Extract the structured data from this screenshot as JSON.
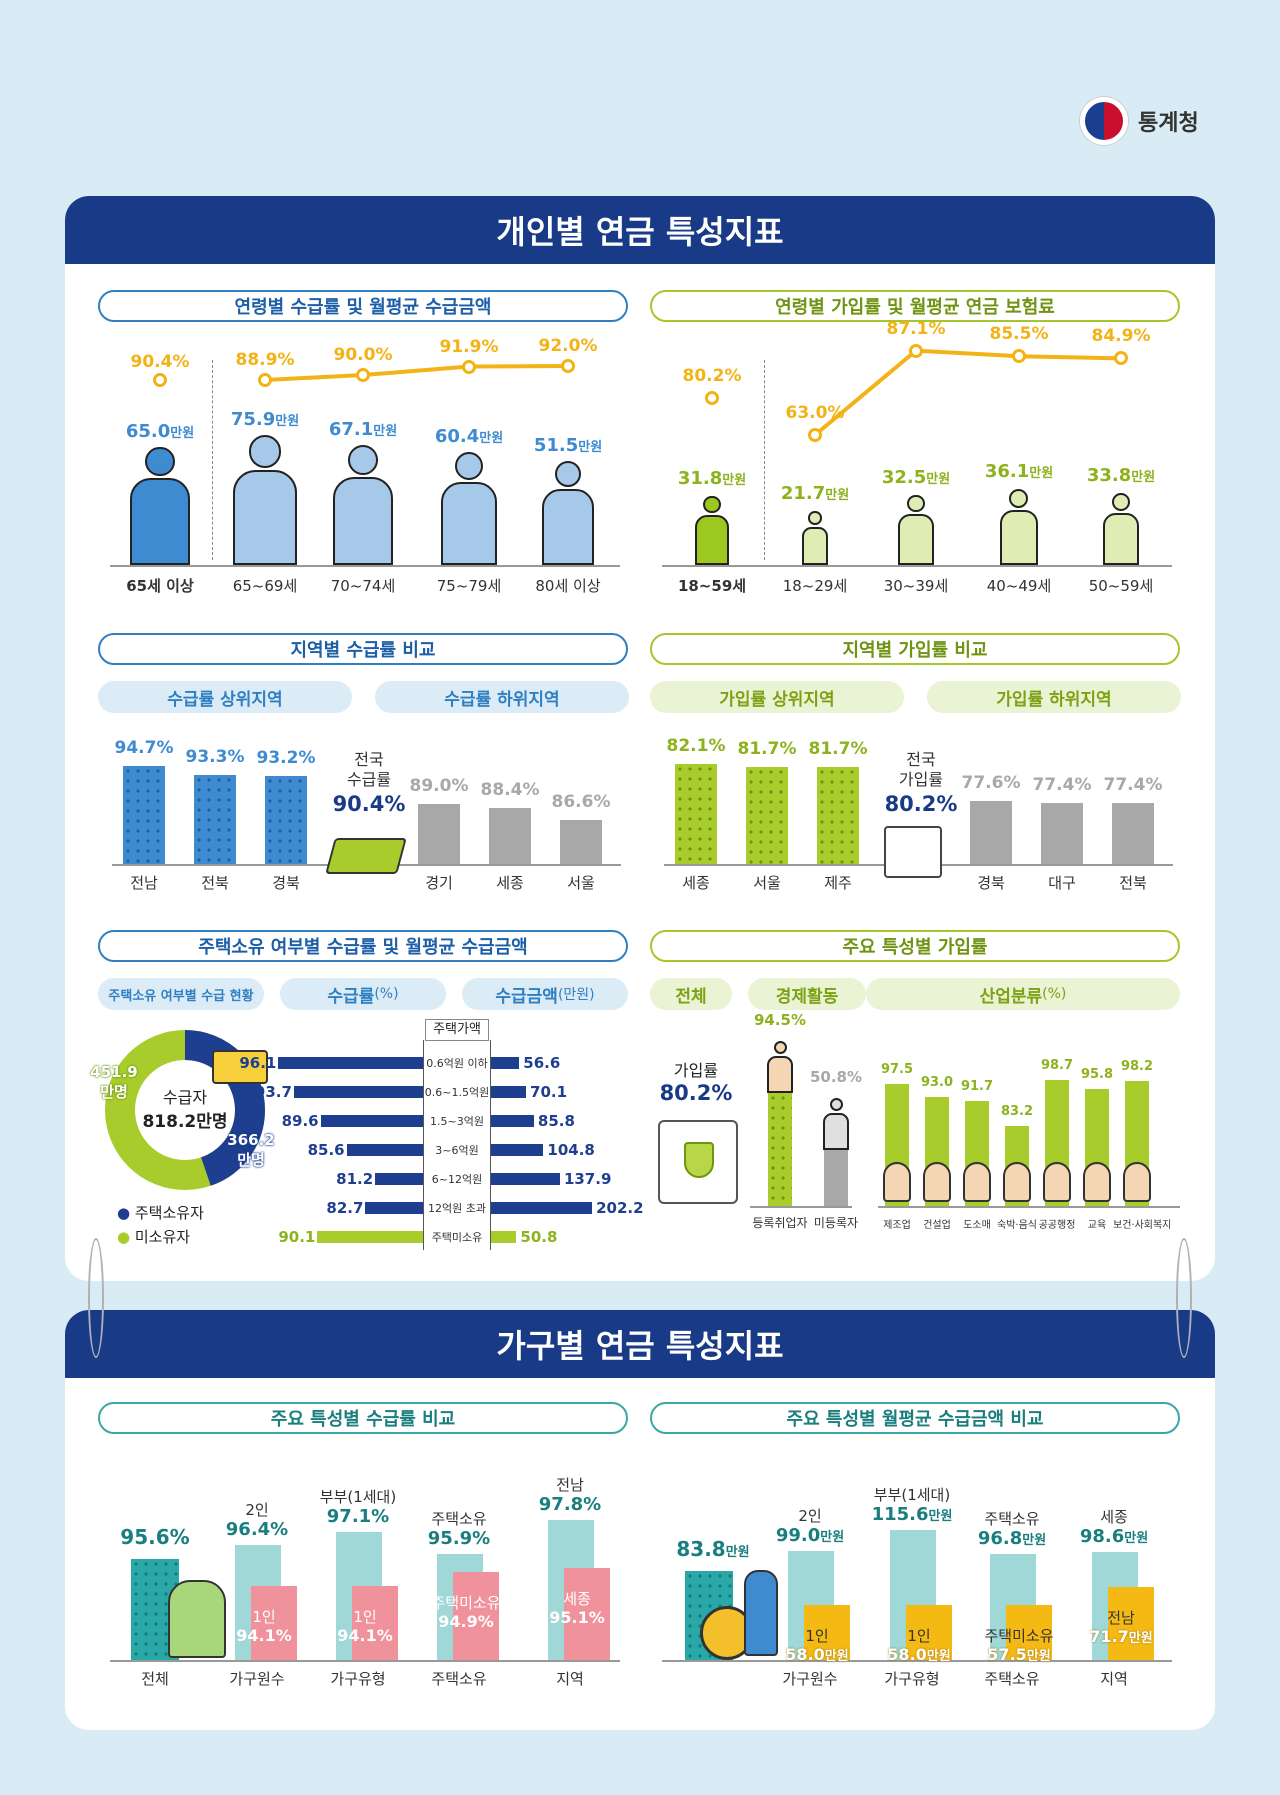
{
  "org": "통계청",
  "panel1": {
    "title": "개인별 연금 특성지표"
  },
  "panel2": {
    "title": "가구별 연금 특성지표"
  },
  "s1": {
    "title": "연령별 수급률 및 월평균 수급금액",
    "groups": [
      {
        "label": "65세 이상",
        "rate": "90.4%",
        "amount": "65.0",
        "unit": "만원"
      },
      {
        "label": "65~69세",
        "rate": "88.9%",
        "amount": "75.9",
        "unit": "만원"
      },
      {
        "label": "70~74세",
        "rate": "90.0%",
        "amount": "67.1",
        "unit": "만원"
      },
      {
        "label": "75~79세",
        "rate": "91.9%",
        "amount": "60.4",
        "unit": "만원"
      },
      {
        "label": "80세 이상",
        "rate": "92.0%",
        "amount": "51.5",
        "unit": "만원"
      }
    ]
  },
  "s2": {
    "title": "연령별 가입률 및 월평균 연금 보험료",
    "groups": [
      {
        "label": "18~59세",
        "rate": "80.2%",
        "amount": "31.8",
        "unit": "만원"
      },
      {
        "label": "18~29세",
        "rate": "63.0%",
        "amount": "21.7",
        "unit": "만원"
      },
      {
        "label": "30~39세",
        "rate": "87.1%",
        "amount": "32.5",
        "unit": "만원"
      },
      {
        "label": "40~49세",
        "rate": "85.5%",
        "amount": "36.1",
        "unit": "만원"
      },
      {
        "label": "50~59세",
        "rate": "84.9%",
        "amount": "33.8",
        "unit": "만원"
      }
    ]
  },
  "s3": {
    "title": "지역별 수급률 비교",
    "top_label": "수급률 상위지역",
    "bottom_label": "수급률 하위지역",
    "national_label_1": "전국",
    "national_label_2": "수급률",
    "national": "90.4%",
    "top": [
      {
        "region": "전남",
        "value": "94.7%"
      },
      {
        "region": "전북",
        "value": "93.3%"
      },
      {
        "region": "경북",
        "value": "93.2%"
      }
    ],
    "bottom": [
      {
        "region": "경기",
        "value": "89.0%"
      },
      {
        "region": "세종",
        "value": "88.4%"
      },
      {
        "region": "서울",
        "value": "86.6%"
      }
    ]
  },
  "s4": {
    "title": "지역별 가입률 비교",
    "top_label": "가입률 상위지역",
    "bottom_label": "가입률 하위지역",
    "national_label_1": "전국",
    "national_label_2": "가입률",
    "national": "80.2%",
    "top": [
      {
        "region": "세종",
        "value": "82.1%"
      },
      {
        "region": "서울",
        "value": "81.7%"
      },
      {
        "region": "제주",
        "value": "81.7%"
      }
    ],
    "bottom": [
      {
        "region": "경북",
        "value": "77.6%"
      },
      {
        "region": "대구",
        "value": "77.4%"
      },
      {
        "region": "전북",
        "value": "77.4%"
      }
    ]
  },
  "s5": {
    "title": "주택소유 여부별 수급률 및 월평균 수급금액",
    "pill1": "주택소유 여부별 수급 현황",
    "pill2": "수급률",
    "pill2_unit": "(%)",
    "pill3": "수급금액",
    "pill3_unit": "(만원)",
    "donut_center_1": "수급자",
    "donut_center_2": "818.2만명",
    "owner_value": "366.2만명",
    "nonowner_value": "451.9만명",
    "legend_owner": "주택소유자",
    "legend_nonowner": "미소유자",
    "price_header": "주택가액",
    "rows": [
      {
        "cat": "0.6억원 이하",
        "rate": "96.1",
        "amount": "56.6"
      },
      {
        "cat": "0.6~1.5억원",
        "rate": "93.7",
        "amount": "70.1"
      },
      {
        "cat": "1.5~3억원",
        "rate": "89.6",
        "amount": "85.8"
      },
      {
        "cat": "3~6억원",
        "rate": "85.6",
        "amount": "104.8"
      },
      {
        "cat": "6~12억원",
        "rate": "81.2",
        "amount": "137.9"
      },
      {
        "cat": "12억원 초과",
        "rate": "82.7",
        "amount": "202.2"
      },
      {
        "cat": "주택미소유",
        "rate": "90.1",
        "amount": "50.8"
      }
    ]
  },
  "s6": {
    "title": "주요 특성별 가입률",
    "pill1": "전체",
    "pill2": "경제활동",
    "pill3": "산업분류",
    "pill3_unit": "(%)",
    "overall_label": "가입률",
    "overall": "80.2%",
    "econ": [
      {
        "label": "등록취업자",
        "value": "94.5%"
      },
      {
        "label": "미등록자",
        "value": "50.8%"
      }
    ],
    "industry": [
      {
        "label": "제조업",
        "value": "97.5"
      },
      {
        "label": "건설업",
        "value": "93.0"
      },
      {
        "label": "도소매",
        "value": "91.7"
      },
      {
        "label": "숙박·음식",
        "value": "83.2"
      },
      {
        "label": "공공행정",
        "value": "98.7"
      },
      {
        "label": "교육",
        "value": "95.8"
      },
      {
        "label": "보건·사회복지",
        "value": "98.2"
      }
    ]
  },
  "s7": {
    "title": "주요 특성별 수급률 비교",
    "overall": {
      "label": "전체",
      "value": "95.6%"
    },
    "groups": [
      {
        "label": "가구원수",
        "hi_name": "2인",
        "hi": "96.4%",
        "lo_name": "1인",
        "lo": "94.1%"
      },
      {
        "label": "가구유형",
        "hi_name": "부부(1세대)",
        "hi": "97.1%",
        "lo_name": "1인",
        "lo": "94.1%"
      },
      {
        "label": "주택소유",
        "hi_name": "주택소유",
        "hi": "95.9%",
        "lo_name": "주택미소유",
        "lo": "94.9%"
      },
      {
        "label": "지역",
        "hi_name": "전남",
        "hi": "97.8%",
        "lo_name": "세종",
        "lo": "95.1%"
      }
    ]
  },
  "s8": {
    "title": "주요 특성별 월평균 수급금액 비교",
    "overall": {
      "value": "83.8",
      "unit": "만원"
    },
    "groups": [
      {
        "label": "가구원수",
        "hi_name": "2인",
        "hi": "99.0",
        "lo_name": "1인",
        "lo": "58.0",
        "unit": "만원"
      },
      {
        "label": "가구유형",
        "hi_name": "부부(1세대)",
        "hi": "115.6",
        "lo_name": "1인",
        "lo": "58.0",
        "unit": "만원"
      },
      {
        "label": "주택소유",
        "hi_name": "주택소유",
        "hi": "96.8",
        "lo_name": "주택미소유",
        "lo": "57.5",
        "unit": "만원"
      },
      {
        "label": "지역",
        "hi_name": "세종",
        "hi": "98.6",
        "lo_name": "전남",
        "lo": "71.7",
        "unit": "만원"
      }
    ]
  }
}
